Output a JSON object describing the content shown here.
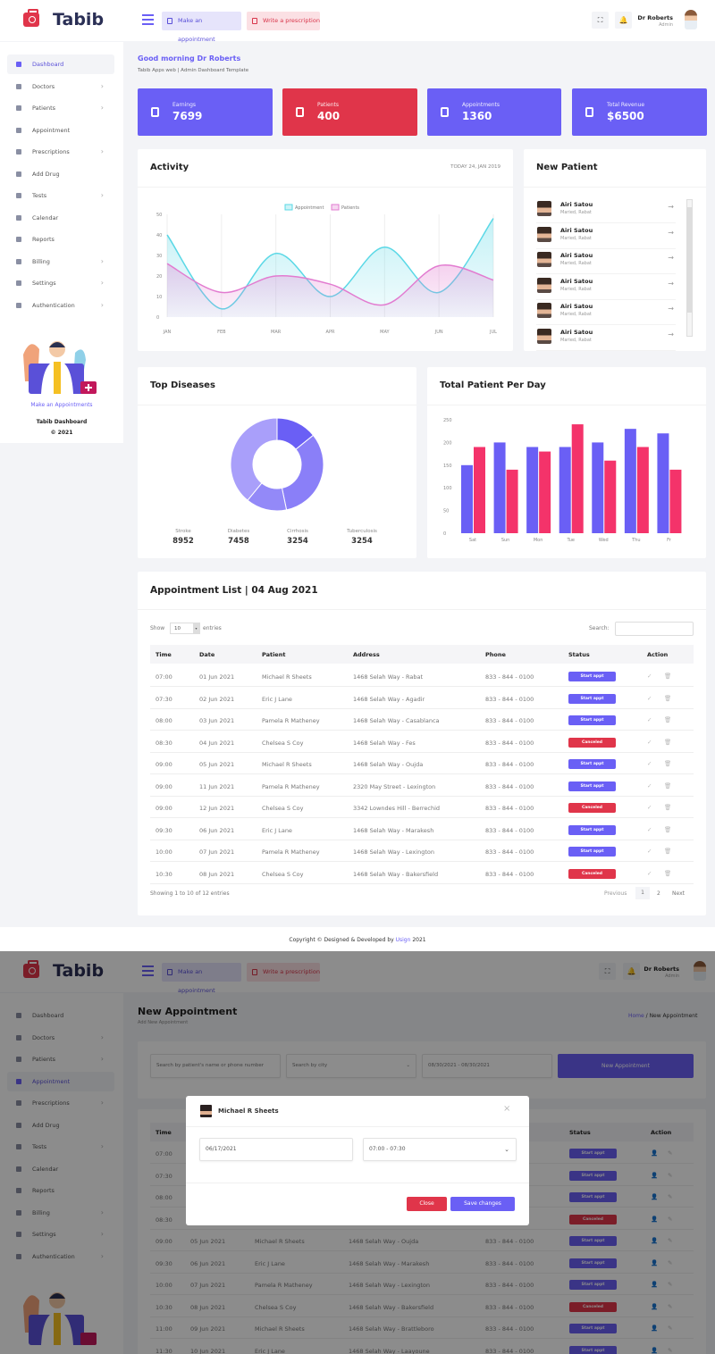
{
  "colors": {
    "primary": "#6a5ff5",
    "danger": "#e0354a",
    "light_purple": "#a99ffa"
  },
  "header": {
    "brand": "Tabib",
    "make_appointment": "Make an appointment",
    "write_prescription": "Write a prescription",
    "user_name": "Dr Roberts",
    "user_role": "Admin",
    "icons": [
      "menu-icon",
      "fullscreen-icon",
      "bell-icon"
    ]
  },
  "sidebar": {
    "items": [
      {
        "label": "Dashboard",
        "icon": "grid-icon",
        "chevron": false
      },
      {
        "label": "Doctors",
        "icon": "doctor-icon",
        "chevron": true
      },
      {
        "label": "Patients",
        "icon": "users-icon",
        "chevron": true
      },
      {
        "label": "Appointment",
        "icon": "calendar-icon",
        "chevron": false
      },
      {
        "label": "Prescriptions",
        "icon": "prescription-icon",
        "chevron": true
      },
      {
        "label": "Add Drug",
        "icon": "drug-icon",
        "chevron": false
      },
      {
        "label": "Tests",
        "icon": "heart-icon",
        "chevron": true
      },
      {
        "label": "Calendar",
        "icon": "calendar-icon",
        "chevron": false
      },
      {
        "label": "Reports",
        "icon": "chart-icon",
        "chevron": false
      },
      {
        "label": "Billing",
        "icon": "billing-icon",
        "chevron": true
      },
      {
        "label": "Settings",
        "icon": "gear-icon",
        "chevron": true
      },
      {
        "label": "Authentication",
        "icon": "tag-icon",
        "chevron": true
      }
    ],
    "cta": "Make an Appointments",
    "footer_title": "Tabib Dashboard",
    "footer_year": "© 2021"
  },
  "dashboard": {
    "greeting": "Good morning Dr Roberts",
    "subtitle": "Tabib Apps web | Admin Dashboard Template",
    "stats": [
      {
        "label": "Earnings",
        "value": "7699",
        "color": "#6a5ff5"
      },
      {
        "label": "Patients",
        "value": "400",
        "color": "#e0354a"
      },
      {
        "label": "Appointments",
        "value": "1360",
        "color": "#6a5ff5"
      },
      {
        "label": "Total Revenue",
        "value": "$6500",
        "color": "#6a5ff5"
      }
    ],
    "activity": {
      "title": "Activity",
      "date": "TODAY 24, JAN 2019"
    },
    "new_patient": {
      "title": "New Patient",
      "items": [
        {
          "name": "Airi Satou",
          "sub": "Maried, Rabat"
        },
        {
          "name": "Airi Satou",
          "sub": "Maried, Rabat"
        },
        {
          "name": "Airi Satou",
          "sub": "Maried, Rabat"
        },
        {
          "name": "Airi Satou",
          "sub": "Maried, Rabat"
        },
        {
          "name": "Airi Satou",
          "sub": "Maried, Rabat"
        },
        {
          "name": "Airi Satou",
          "sub": "Maried, Rabat"
        }
      ]
    },
    "top_diseases": {
      "title": "Top Diseases"
    },
    "patients_per_day": {
      "title": "Total Patient Per Day"
    },
    "appointments": {
      "title": "Appointment List | 04 Aug 2021",
      "show": "Show",
      "entries_value": "10",
      "entries": "entries",
      "search_label": "Search:",
      "search_value": "",
      "columns": [
        "Time",
        "Date",
        "Patient",
        "Address",
        "Phone",
        "Status",
        "Action"
      ],
      "rows": [
        [
          "07:00",
          "01 Jun 2021",
          "Michael R Sheets",
          "1468 Selah Way - Rabat",
          "833 - 844 - 0100",
          "Start appt"
        ],
        [
          "07:30",
          "02 Jun 2021",
          "Eric J Lane",
          "1468 Selah Way - Agadir",
          "833 - 844 - 0100",
          "Start appt"
        ],
        [
          "08:00",
          "03 Jun 2021",
          "Pamela R Matheney",
          "1468 Selah Way - Casablanca",
          "833 - 844 - 0100",
          "Start appt"
        ],
        [
          "08:30",
          "04 Jun 2021",
          "Chelsea S Coy",
          "1468 Selah Way - Fes",
          "833 - 844 - 0100",
          "Canceled"
        ],
        [
          "09:00",
          "05 Jun 2021",
          "Michael R Sheets",
          "1468 Selah Way - Oujda",
          "833 - 844 - 0100",
          "Start appt"
        ],
        [
          "09:00",
          "11 Jun 2021",
          "Pamela R Matheney",
          "2320 May Street - Lexington",
          "833 - 844 - 0100",
          "Start appt"
        ],
        [
          "09:00",
          "12 Jun 2021",
          "Chelsea S Coy",
          "3342 Lowndes Hill - Berrechid",
          "833 - 844 - 0100",
          "Canceled"
        ],
        [
          "09:30",
          "06 Jun 2021",
          "Eric J Lane",
          "1468 Selah Way - Marakesh",
          "833 - 844 - 0100",
          "Start appt"
        ],
        [
          "10:00",
          "07 Jun 2021",
          "Pamela R Matheney",
          "1468 Selah Way - Lexington",
          "833 - 844 - 0100",
          "Start appt"
        ],
        [
          "10:30",
          "08 Jun 2021",
          "Chelsea S Coy",
          "1468 Selah Way - Bakersfield",
          "833 - 844 - 0100",
          "Canceled"
        ]
      ],
      "showing": "Showing 1 to 10 of 12 entries",
      "previous": "Previous",
      "pages": [
        "1",
        "2"
      ],
      "next": "Next"
    },
    "footer": {
      "prefix": "Copyright © Designed & Developed by ",
      "link": "Usign",
      "suffix": " 2021"
    }
  },
  "new_appointment": {
    "title": "New Appointment",
    "subtitle": "Add New Appointment",
    "breadcrumb_home": "Home",
    "breadcrumb_current": "New Appointment",
    "search_placeholder": "Search by patient's name or phone number",
    "city_placeholder": "Search by city",
    "date_range": "08/30/2021 - 08/30/2021",
    "new_button": "New Appointment",
    "rows": [
      [
        "07:00",
        "Start appt"
      ],
      [
        "07:30",
        "Start appt"
      ],
      [
        "08:00",
        "Start appt"
      ],
      [
        "08:30",
        "Canceled"
      ],
      [
        "09:00",
        "05 Jun 2021",
        "Michael R Sheets",
        "1468 Selah Way - Oujda",
        "833 - 844 - 0100",
        "Start appt"
      ],
      [
        "09:30",
        "06 Jun 2021",
        "Eric J Lane",
        "1468 Selah Way - Marakesh",
        "833 - 844 - 0100",
        "Start appt"
      ],
      [
        "10:00",
        "07 Jun 2021",
        "Pamela R Matheney",
        "1468 Selah Way - Lexington",
        "833 - 844 - 0100",
        "Start appt"
      ],
      [
        "10:30",
        "08 Jun 2021",
        "Chelsea S Coy",
        "1468 Selah Way - Bakersfield",
        "833 - 844 - 0100",
        "Canceled"
      ],
      [
        "11:00",
        "09 Jun 2021",
        "Michael R Sheets",
        "1468 Selah Way - Brattleboro",
        "833 - 844 - 0100",
        "Start appt"
      ],
      [
        "11:30",
        "10 Jun 2021",
        "Eric J Lane",
        "1468 Selah Way - Laayoune",
        "833 - 844 - 0100",
        "Start appt"
      ]
    ],
    "modal": {
      "patient": "Michael R Sheets",
      "date": "06/17/2021",
      "time_slot": "07:00 - 07:30",
      "close": "Close",
      "save": "Save changes"
    }
  },
  "chart_data": [
    {
      "type": "area",
      "title": "",
      "categories": [
        "JAN",
        "FEB",
        "MAR",
        "APR",
        "MAY",
        "JUN",
        "JUL"
      ],
      "ylim": [
        0,
        50
      ],
      "yticks": [
        0,
        10,
        20,
        30,
        40,
        50
      ],
      "legend": "top-center",
      "grid": "vertical",
      "series": [
        {
          "name": "Appointment",
          "color": "#5ad8e6",
          "values": [
            40,
            4,
            31,
            10,
            34,
            12,
            48
          ]
        },
        {
          "name": "Patients",
          "color": "#e27bd0",
          "values": [
            26,
            12,
            20,
            16,
            6,
            25,
            18
          ]
        }
      ]
    },
    {
      "type": "pie",
      "title": "",
      "donut": true,
      "categories": [
        "Stroke",
        "Diabetes",
        "Cirrhosis",
        "Tuberculosis"
      ],
      "values": [
        8952,
        7458,
        3254,
        3254
      ],
      "colors": [
        "#a99ffa",
        "#8a7ff8",
        "#9389f8",
        "#6a5ff5"
      ]
    },
    {
      "type": "bar",
      "title": "",
      "categories": [
        "Sat",
        "Sun",
        "Mon",
        "Tue",
        "Wed",
        "Thu",
        "Fr"
      ],
      "ylim": [
        0,
        250
      ],
      "yticks": [
        0,
        50,
        100,
        150,
        200,
        250
      ],
      "series": [
        {
          "color": "#6a5ff5",
          "values": [
            150,
            200,
            190,
            190,
            200,
            230,
            220
          ]
        },
        {
          "color": "#f4336a",
          "values": [
            190,
            140,
            180,
            240,
            160,
            190,
            140
          ]
        }
      ]
    }
  ]
}
